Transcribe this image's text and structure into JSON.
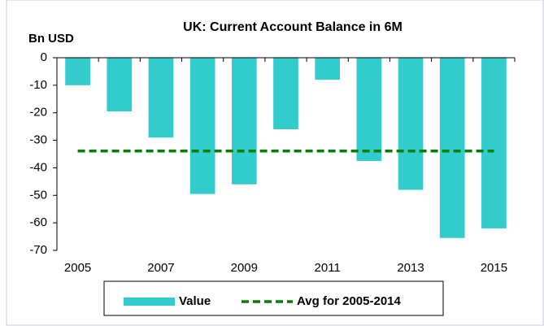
{
  "chart_data": {
    "type": "bar",
    "title": "UK: Current Account Balance in 6M",
    "y_label": "Bn USD",
    "categories": [
      "2005",
      null,
      "2007",
      null,
      "2009",
      null,
      "2011",
      null,
      "2013",
      null,
      "2015"
    ],
    "series": [
      {
        "name": "Value",
        "type": "bar",
        "color": "#33cccc",
        "values": [
          -10,
          -19.5,
          -29,
          -49.5,
          -46,
          -26,
          -8,
          -37.5,
          -48,
          -65.5,
          -62
        ]
      },
      {
        "name": "Avg for 2005-2014",
        "type": "line",
        "dashed": true,
        "color": "#008000",
        "values": [
          -33.9,
          -33.9,
          -33.9,
          -33.9,
          -33.9,
          -33.9,
          -33.9,
          -33.9,
          -33.9,
          -33.9,
          -33.9
        ]
      }
    ],
    "ylim": [
      -70,
      0
    ],
    "yticks": [
      0,
      -10,
      -20,
      -30,
      -40,
      -50,
      -60,
      -70
    ],
    "grid": false,
    "legend": "bottom"
  }
}
